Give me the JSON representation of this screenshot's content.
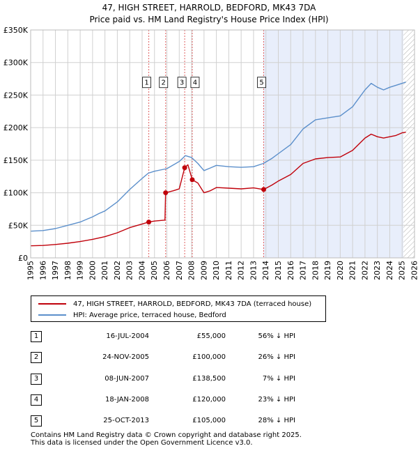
{
  "title_line1": "47, HIGH STREET, HARROLD, BEDFORD, MK43 7DA",
  "title_line2": "Price paid vs. HM Land Registry's House Price Index (HPI)",
  "chart_data": {
    "type": "line",
    "xlim": [
      1995.0,
      2026.0
    ],
    "ylim": [
      0,
      350000
    ],
    "y_ticks": [
      0,
      50000,
      100000,
      150000,
      200000,
      250000,
      300000,
      350000
    ],
    "y_tick_labels": [
      "£0",
      "£50K",
      "£100K",
      "£150K",
      "£200K",
      "£250K",
      "£300K",
      "£350K"
    ],
    "x_ticks": [
      1995,
      1996,
      1997,
      1998,
      1999,
      2000,
      2001,
      2002,
      2003,
      2004,
      2005,
      2006,
      2007,
      2008,
      2009,
      2010,
      2011,
      2012,
      2013,
      2014,
      2015,
      2016,
      2017,
      2018,
      2019,
      2020,
      2021,
      2022,
      2023,
      2024,
      2025,
      2026
    ],
    "shaded_region": [
      2013.8,
      2025.1
    ],
    "hatched_region": [
      2025.1,
      2026.0
    ],
    "series": [
      {
        "name": "HPI: Average price, terraced house, Bedford",
        "color": "#5b8fcb",
        "points": [
          [
            1995.0,
            41000
          ],
          [
            1996.0,
            42000
          ],
          [
            1997.0,
            45000
          ],
          [
            1998.0,
            50000
          ],
          [
            1999.0,
            55000
          ],
          [
            2000.0,
            63000
          ],
          [
            2000.5,
            68000
          ],
          [
            2001.0,
            72000
          ],
          [
            2002.0,
            86000
          ],
          [
            2003.0,
            105000
          ],
          [
            2004.0,
            122000
          ],
          [
            2004.5,
            130000
          ],
          [
            2005.0,
            133000
          ],
          [
            2006.0,
            137000
          ],
          [
            2007.0,
            148000
          ],
          [
            2007.5,
            157000
          ],
          [
            2008.0,
            154000
          ],
          [
            2008.5,
            145000
          ],
          [
            2009.0,
            134000
          ],
          [
            2009.5,
            138000
          ],
          [
            2010.0,
            142000
          ],
          [
            2011.0,
            140000
          ],
          [
            2012.0,
            139000
          ],
          [
            2013.0,
            140000
          ],
          [
            2013.8,
            145000
          ],
          [
            2014.5,
            153000
          ],
          [
            2015.0,
            160000
          ],
          [
            2016.0,
            174000
          ],
          [
            2017.0,
            198000
          ],
          [
            2018.0,
            212000
          ],
          [
            2019.0,
            215000
          ],
          [
            2020.0,
            218000
          ],
          [
            2021.0,
            232000
          ],
          [
            2022.0,
            258000
          ],
          [
            2022.5,
            268000
          ],
          [
            2023.0,
            262000
          ],
          [
            2023.5,
            258000
          ],
          [
            2024.0,
            262000
          ],
          [
            2024.5,
            265000
          ],
          [
            2025.0,
            268000
          ],
          [
            2025.3,
            270000
          ]
        ]
      },
      {
        "name": "47, HIGH STREET, HARROLD, BEDFORD, MK43 7DA (terraced house)",
        "color": "#c0000a",
        "points": [
          [
            1995.0,
            18500
          ],
          [
            1996.0,
            19000
          ],
          [
            1997.0,
            20500
          ],
          [
            1998.0,
            22500
          ],
          [
            1999.0,
            25000
          ],
          [
            2000.0,
            28500
          ],
          [
            2001.0,
            32500
          ],
          [
            2002.0,
            38500
          ],
          [
            2003.0,
            46500
          ],
          [
            2004.0,
            52000
          ],
          [
            2004.54,
            55000
          ],
          [
            2005.0,
            56500
          ],
          [
            2005.85,
            58000
          ],
          [
            2005.9,
            100000
          ],
          [
            2006.5,
            103000
          ],
          [
            2007.0,
            106000
          ],
          [
            2007.44,
            138500
          ],
          [
            2007.7,
            143000
          ],
          [
            2008.05,
            120000
          ],
          [
            2008.5,
            115000
          ],
          [
            2009.0,
            100000
          ],
          [
            2009.5,
            103000
          ],
          [
            2010.0,
            108000
          ],
          [
            2011.0,
            107000
          ],
          [
            2012.0,
            106000
          ],
          [
            2013.0,
            107500
          ],
          [
            2013.82,
            105000
          ],
          [
            2014.5,
            112000
          ],
          [
            2015.0,
            118000
          ],
          [
            2016.0,
            128000
          ],
          [
            2017.0,
            145000
          ],
          [
            2018.0,
            152000
          ],
          [
            2019.0,
            154000
          ],
          [
            2020.0,
            155000
          ],
          [
            2021.0,
            165000
          ],
          [
            2022.0,
            184000
          ],
          [
            2022.5,
            190000
          ],
          [
            2023.0,
            186000
          ],
          [
            2023.5,
            184000
          ],
          [
            2024.0,
            186000
          ],
          [
            2024.5,
            188000
          ],
          [
            2025.0,
            192000
          ],
          [
            2025.3,
            193000
          ]
        ]
      }
    ],
    "sales": [
      {
        "label": "1",
        "x": 2004.54,
        "price": 55000
      },
      {
        "label": "2",
        "x": 2005.9,
        "price": 100000
      },
      {
        "label": "3",
        "x": 2007.44,
        "price": 138500
      },
      {
        "label": "4",
        "x": 2008.05,
        "price": 120000
      },
      {
        "label": "5",
        "x": 2013.82,
        "price": 105000
      }
    ]
  },
  "legend": {
    "property": "47, HIGH STREET, HARROLD, BEDFORD, MK43 7DA (terraced house)",
    "hpi": "HPI: Average price, terraced house, Bedford"
  },
  "transactions": [
    {
      "num": "1",
      "date": "16-JUL-2004",
      "price": "£55,000",
      "hpi": "56% ↓ HPI"
    },
    {
      "num": "2",
      "date": "24-NOV-2005",
      "price": "£100,000",
      "hpi": "26% ↓ HPI"
    },
    {
      "num": "3",
      "date": "08-JUN-2007",
      "price": "£138,500",
      "hpi": "7% ↓ HPI"
    },
    {
      "num": "4",
      "date": "18-JAN-2008",
      "price": "£120,000",
      "hpi": "23% ↓ HPI"
    },
    {
      "num": "5",
      "date": "25-OCT-2013",
      "price": "£105,000",
      "hpi": "28% ↓ HPI"
    }
  ],
  "footer_line1": "Contains HM Land Registry data © Crown copyright and database right 2025.",
  "footer_line2": "This data is licensed under the Open Government Licence v3.0."
}
